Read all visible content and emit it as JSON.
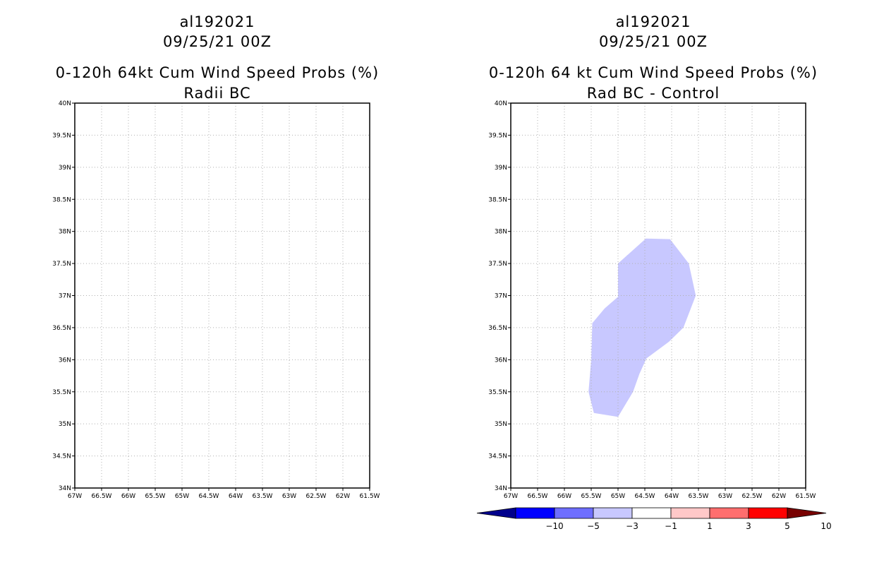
{
  "colors": {
    "background": "#ffffff",
    "frame": "#000000",
    "grid": "#b0b0b0",
    "fill_minus3_to_minus1": "#c8c8ff"
  },
  "chart_data": [
    {
      "type": "map",
      "title_lines": [
        "al192021",
        "09/25/21 00Z",
        "0-120h 64kt Cum Wind Speed Probs (%)",
        "Radii BC"
      ],
      "xlim": [
        -67,
        -61.5
      ],
      "ylim": [
        34,
        40
      ],
      "x_ticks": [
        -67,
        -66.5,
        -66,
        -65.5,
        -65,
        -64.5,
        -64,
        -63.5,
        -63,
        -62.5,
        -62,
        -61.5
      ],
      "x_tick_labels": [
        "67W",
        "66.5W",
        "66W",
        "65.5W",
        "65W",
        "64.5W",
        "64W",
        "63.5W",
        "63W",
        "62.5W",
        "62W",
        "61.5W"
      ],
      "y_ticks": [
        34,
        34.5,
        35,
        35.5,
        36,
        36.5,
        37,
        37.5,
        38,
        38.5,
        39,
        39.5,
        40
      ],
      "y_tick_labels": [
        "34N",
        "34.5N",
        "35N",
        "35.5N",
        "36N",
        "36.5N",
        "37N",
        "37.5N",
        "38N",
        "38.5N",
        "39N",
        "39.5N",
        "40N"
      ],
      "grid": "dotted",
      "shaded_regions": []
    },
    {
      "type": "map",
      "title_lines": [
        "al192021",
        "09/25/21 00Z",
        "0-120h 64 kt Cum Wind Speed Probs (%)",
        "Rad BC - Control"
      ],
      "xlim": [
        -67,
        -61.5
      ],
      "ylim": [
        34,
        40
      ],
      "x_ticks": [
        -67,
        -66.5,
        -66,
        -65.5,
        -65,
        -64.5,
        -64,
        -63.5,
        -63,
        -62.5,
        -62,
        -61.5
      ],
      "x_tick_labels": [
        "67W",
        "66.5W",
        "66W",
        "65.5W",
        "65W",
        "64.5W",
        "64W",
        "63.5W",
        "63W",
        "62.5W",
        "62W",
        "61.5W"
      ],
      "y_ticks": [
        34,
        34.5,
        35,
        35.5,
        36,
        36.5,
        37,
        37.5,
        38,
        38.5,
        39,
        39.5,
        40
      ],
      "y_tick_labels": [
        "34N",
        "34.5N",
        "35N",
        "35.5N",
        "36N",
        "36.5N",
        "37N",
        "37.5N",
        "38N",
        "38.5N",
        "39N",
        "39.5N",
        "40N"
      ],
      "grid": "dotted",
      "shaded_regions": [
        {
          "range": "-3 to -1",
          "color": "#c8c8ff",
          "lonlat": [
            [
              -64.48,
              37.89
            ],
            [
              -64.03,
              37.88
            ],
            [
              -63.68,
              37.5
            ],
            [
              -63.55,
              37.0
            ],
            [
              -63.78,
              36.5
            ],
            [
              -64.05,
              36.28
            ],
            [
              -64.47,
              36.02
            ],
            [
              -64.6,
              35.78
            ],
            [
              -64.72,
              35.5
            ],
            [
              -65.0,
              35.11
            ],
            [
              -65.45,
              35.17
            ],
            [
              -65.55,
              35.5
            ],
            [
              -65.5,
              36.0
            ],
            [
              -65.48,
              36.57
            ],
            [
              -65.25,
              36.8
            ],
            [
              -65.0,
              36.98
            ],
            [
              -65.0,
              37.5
            ]
          ]
        }
      ],
      "colorbar": {
        "colors": [
          "#00008c",
          "#0000ff",
          "#6e6eff",
          "#c8c8ff",
          "#ffffff",
          "#ffc8c8",
          "#ff6e6e",
          "#ff0000",
          "#780000"
        ],
        "labels": [
          "-10",
          "-5",
          "-3",
          "-1",
          "1",
          "3",
          "5",
          "10"
        ]
      }
    }
  ]
}
